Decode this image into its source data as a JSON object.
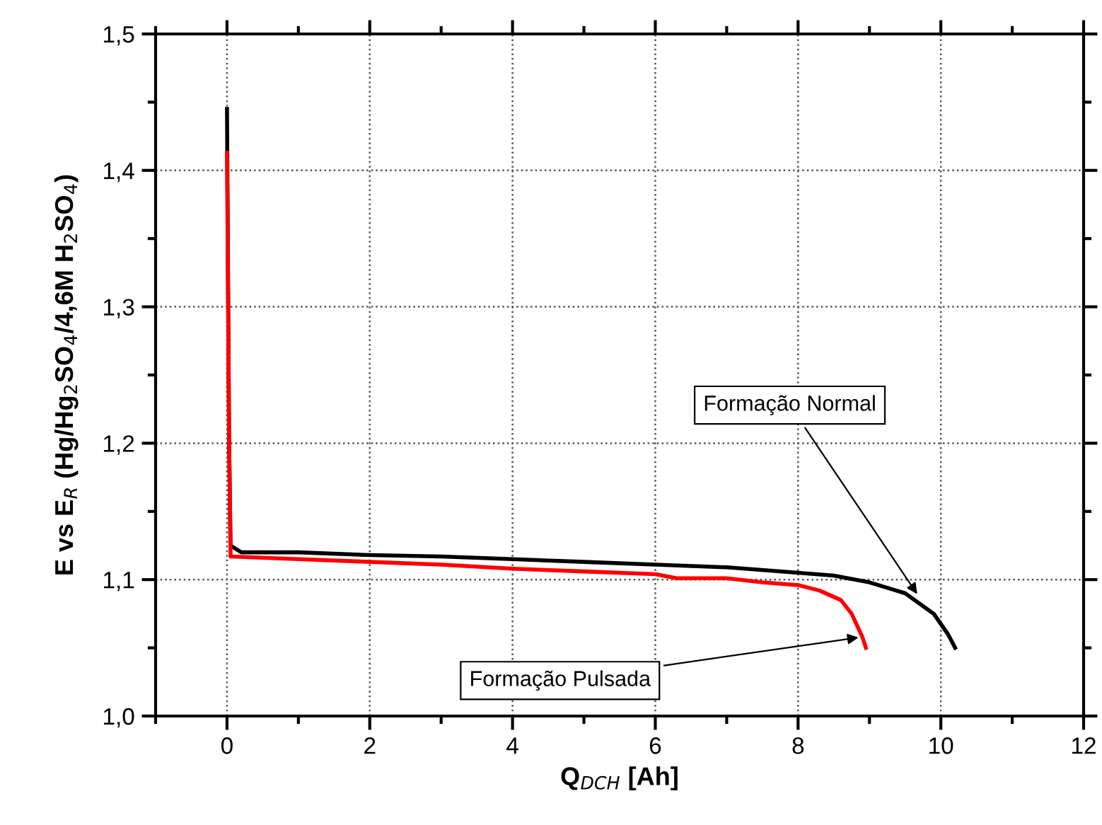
{
  "chart_data": {
    "type": "line",
    "xlabel": "Q$_{DCH}$ [Ah]",
    "ylabel": "E vs E$_{R}$ (Hg/Hg$_{2}$SO$_{4}$/4,6M H$_{2}$SO$_{4}$)",
    "series": [
      {
        "color": "#000000",
        "x": [
          0,
          0.03,
          0.05,
          0.2,
          1,
          2,
          3,
          4,
          5,
          6,
          7,
          8,
          8.5,
          9,
          9.5,
          9.9,
          10.1,
          10.2
        ],
        "values": [
          1.445,
          1.2,
          1.125,
          1.12,
          1.12,
          1.118,
          1.117,
          1.115,
          1.113,
          1.111,
          1.109,
          1.105,
          1.103,
          1.098,
          1.09,
          1.075,
          1.06,
          1.05
        ]
      },
      {
        "color": "#ff0000",
        "x": [
          0,
          0.03,
          0.05,
          1,
          2,
          3,
          4,
          5,
          6,
          6.3,
          7,
          7.5,
          8,
          8.3,
          8.6,
          8.75,
          8.9,
          8.95
        ],
        "values": [
          1.413,
          1.2,
          1.117,
          1.115,
          1.113,
          1.111,
          1.108,
          1.106,
          1.104,
          1.101,
          1.101,
          1.098,
          1.096,
          1.092,
          1.085,
          1.075,
          1.058,
          1.05
        ]
      }
    ],
    "annotations": [
      {
        "text": "Formação Normal",
        "x": 9.7,
        "y": 1.087
      },
      {
        "text": "Formação Pulsada",
        "x": 8.9,
        "y": 1.058
      }
    ],
    "xlim": [
      -1,
      12
    ],
    "xticks": [
      0,
      2,
      4,
      6,
      8,
      10,
      12
    ],
    "ylim": [
      1.0,
      1.5
    ],
    "yticks": [
      {
        "value": 1.0,
        "label": "1,0"
      },
      {
        "value": 1.1,
        "label": "1,1"
      },
      {
        "value": 1.2,
        "label": "1,2"
      },
      {
        "value": 1.3,
        "label": "1,3"
      },
      {
        "value": 1.4,
        "label": "1,4"
      },
      {
        "value": 1.5,
        "label": "1,5"
      }
    ],
    "grid": true,
    "line_style": "solid",
    "legend": false
  }
}
